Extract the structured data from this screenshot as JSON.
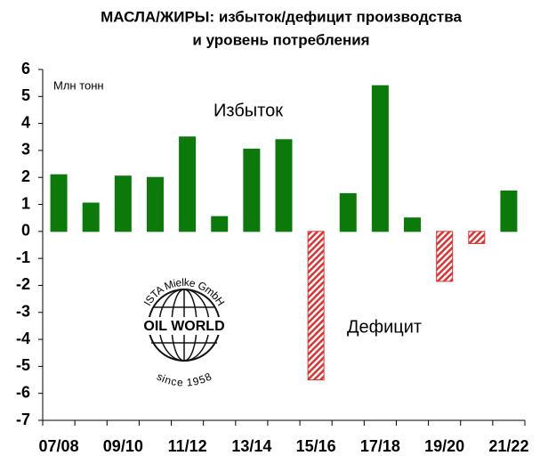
{
  "chart_data": {
    "type": "bar",
    "title": [
      "МАСЛА/ЖИРЫ: избыток/дефицит производства",
      "и уровень потребления"
    ],
    "y_label": "Млн тонн",
    "annotations": [
      "Избыток",
      "Дефицит"
    ],
    "categories": [
      "07/08",
      null,
      "09/10",
      null,
      "11/12",
      null,
      "13/14",
      null,
      "15/16",
      null,
      "17/18",
      null,
      "19/20",
      null,
      "21/22"
    ],
    "values": [
      2.1,
      1.05,
      2.05,
      2.0,
      3.5,
      0.55,
      3.05,
      3.4,
      -5.5,
      1.4,
      5.4,
      0.5,
      -1.85,
      -0.45,
      1.5
    ],
    "color_positive": "#0b7a0b",
    "color_negative": "#e03030",
    "ylim": [
      -7,
      6
    ],
    "yticks": [
      -7,
      -6,
      -5,
      -4,
      -3,
      -2,
      -1,
      0,
      1,
      2,
      3,
      4,
      5,
      6
    ],
    "grid": false
  },
  "logo": {
    "name": "OIL WORLD",
    "company": "ISTA Mielke GmbH",
    "since": "since 1958"
  }
}
